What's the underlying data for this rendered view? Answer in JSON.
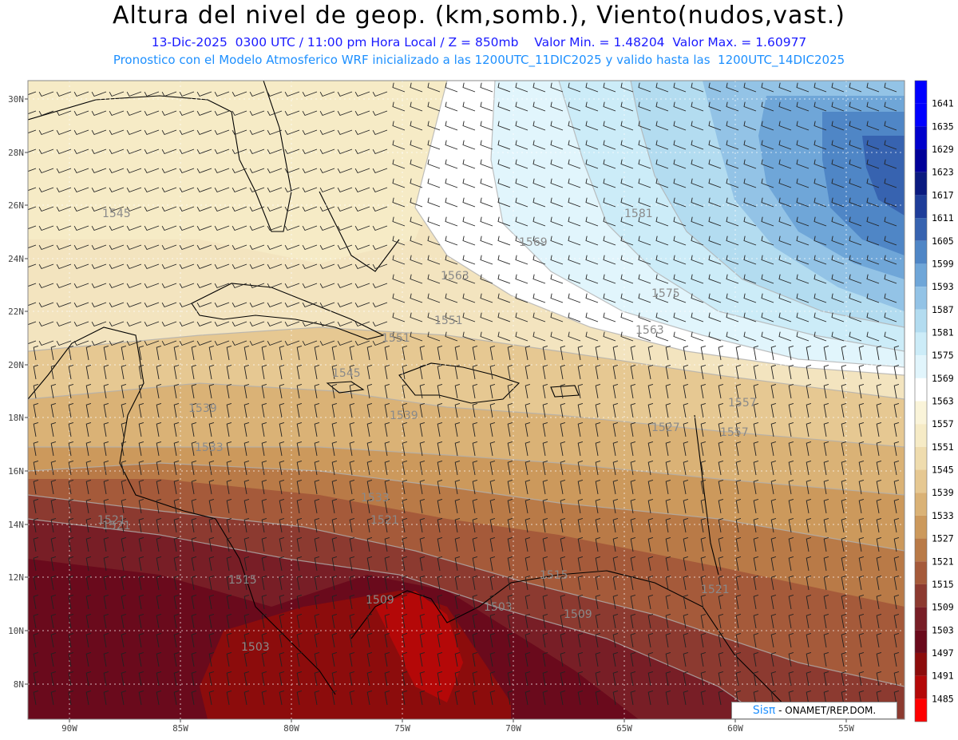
{
  "title": "Altura del nivel de geop. (km,somb.), Viento(nudos,vast.)",
  "subtitle_1": "13-Dic-2025  0300 UTC / 11:00 pm Hora Local / Z = 850mb    Valor Min. = 1.48204  Valor Max. = 1.60977",
  "subtitle_2": "Pronostico con el Modelo Atmosferico WRF inicializado a las 1200UTC_11DIC2025 y valido hasta las  1200UTC_14DIC2025",
  "lat_labels": [
    "30N",
    "28N",
    "26N",
    "24N",
    "22N",
    "20N",
    "18N",
    "16N",
    "14N",
    "12N",
    "10N",
    "8N"
  ],
  "lon_labels": [
    "90W",
    "85W",
    "80W",
    "75W",
    "70W",
    "65W",
    "60W",
    "55W"
  ],
  "colorbar": [
    {
      "value": "1641",
      "color": "#0000ff"
    },
    {
      "value": "1635",
      "color": "#0000cc"
    },
    {
      "value": "1629",
      "color": "#000099"
    },
    {
      "value": "1623",
      "color": "#0a1a80"
    },
    {
      "value": "1617",
      "color": "#1e3d99"
    },
    {
      "value": "1611",
      "color": "#3763b0"
    },
    {
      "value": "1605",
      "color": "#4f86c6"
    },
    {
      "value": "1599",
      "color": "#6fa6d8"
    },
    {
      "value": "1593",
      "color": "#93c3e6"
    },
    {
      "value": "1587",
      "color": "#b3dcf0"
    },
    {
      "value": "1581",
      "color": "#ccecf8"
    },
    {
      "value": "1575",
      "color": "#e1f5fc"
    },
    {
      "value": "1569",
      "color": "#ffffff"
    },
    {
      "value": "1563",
      "color": "#faf4d9"
    },
    {
      "value": "1557",
      "color": "#f6ebc6"
    },
    {
      "value": "1551",
      "color": "#efdcae"
    },
    {
      "value": "1545",
      "color": "#e6c892"
    },
    {
      "value": "1539",
      "color": "#dab276"
    },
    {
      "value": "1533",
      "color": "#cc995c"
    },
    {
      "value": "1527",
      "color": "#b97a47"
    },
    {
      "value": "1521",
      "color": "#a55a3a"
    },
    {
      "value": "1515",
      "color": "#8c3a30"
    },
    {
      "value": "1509",
      "color": "#781e26"
    },
    {
      "value": "1503",
      "color": "#6a0a1c"
    },
    {
      "value": "1497",
      "color": "#8c0c0c"
    },
    {
      "value": "1491",
      "color": "#b40808"
    },
    {
      "value": "1485",
      "color": "#e00000"
    }
  ],
  "colorbar_top": "#0000ff",
  "colorbar_bottom": "#ff0000",
  "contour_labels": [
    "1545",
    "1569",
    "1581",
    "1563",
    "1575",
    "1557",
    "1551",
    "1563",
    "1545",
    "1551",
    "1539",
    "1533",
    "1557",
    "1527",
    "1521",
    "1533",
    "1521",
    "1515",
    "1509",
    "1503",
    "1509",
    "1515",
    "1521",
    "1521",
    "1503",
    "1539"
  ],
  "credit": {
    "logo": "Sisπ",
    "text": "- ONAMET/REP.DOM."
  }
}
